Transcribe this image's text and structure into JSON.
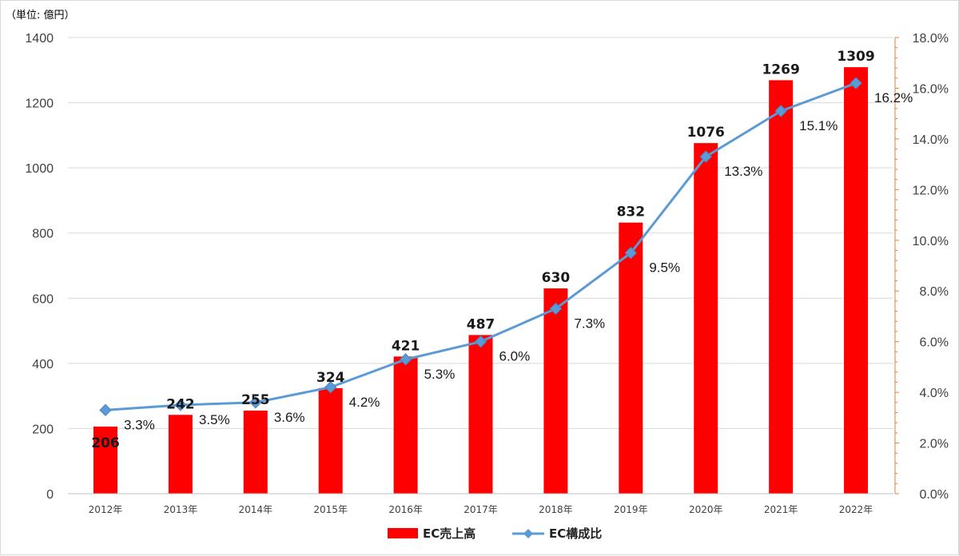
{
  "chart_data": {
    "type": "bar",
    "unit_label": "（単位: 億円）",
    "categories": [
      "2012年",
      "2013年",
      "2014年",
      "2015年",
      "2016年",
      "2017年",
      "2018年",
      "2019年",
      "2020年",
      "2021年",
      "2022年"
    ],
    "series": [
      {
        "name": "EC売上高",
        "type": "bar",
        "axis": "left",
        "color": "#ff0000",
        "values": [
          206,
          242,
          255,
          324,
          421,
          487,
          630,
          832,
          1076,
          1269,
          1309
        ],
        "labels": [
          "206",
          "242",
          "255",
          "324",
          "421",
          "487",
          "630",
          "832",
          "1076",
          "1269",
          "1309"
        ]
      },
      {
        "name": "EC構成比",
        "type": "line",
        "axis": "right",
        "color": "#5b9bd5",
        "values": [
          3.3,
          3.5,
          3.6,
          4.2,
          5.3,
          6.0,
          7.3,
          9.5,
          13.3,
          15.1,
          16.2
        ],
        "labels": [
          "3.3%",
          "3.5%",
          "3.6%",
          "4.2%",
          "5.3%",
          "6.0%",
          "7.3%",
          "9.5%",
          "13.3%",
          "15.1%",
          "16.2%"
        ]
      }
    ],
    "y_left": {
      "min": 0,
      "max": 1400,
      "step": 200,
      "ticks": [
        "0",
        "200",
        "400",
        "600",
        "800",
        "1000",
        "1200",
        "1400"
      ]
    },
    "y_right": {
      "min": 0,
      "max": 18,
      "step": 2,
      "ticks": [
        "0.0%",
        "2.0%",
        "4.0%",
        "6.0%",
        "8.0%",
        "10.0%",
        "12.0%",
        "14.0%",
        "16.0%",
        "18.0%"
      ],
      "axis_color": "#ed7d31"
    },
    "grid": true,
    "legend_position": "bottom"
  }
}
